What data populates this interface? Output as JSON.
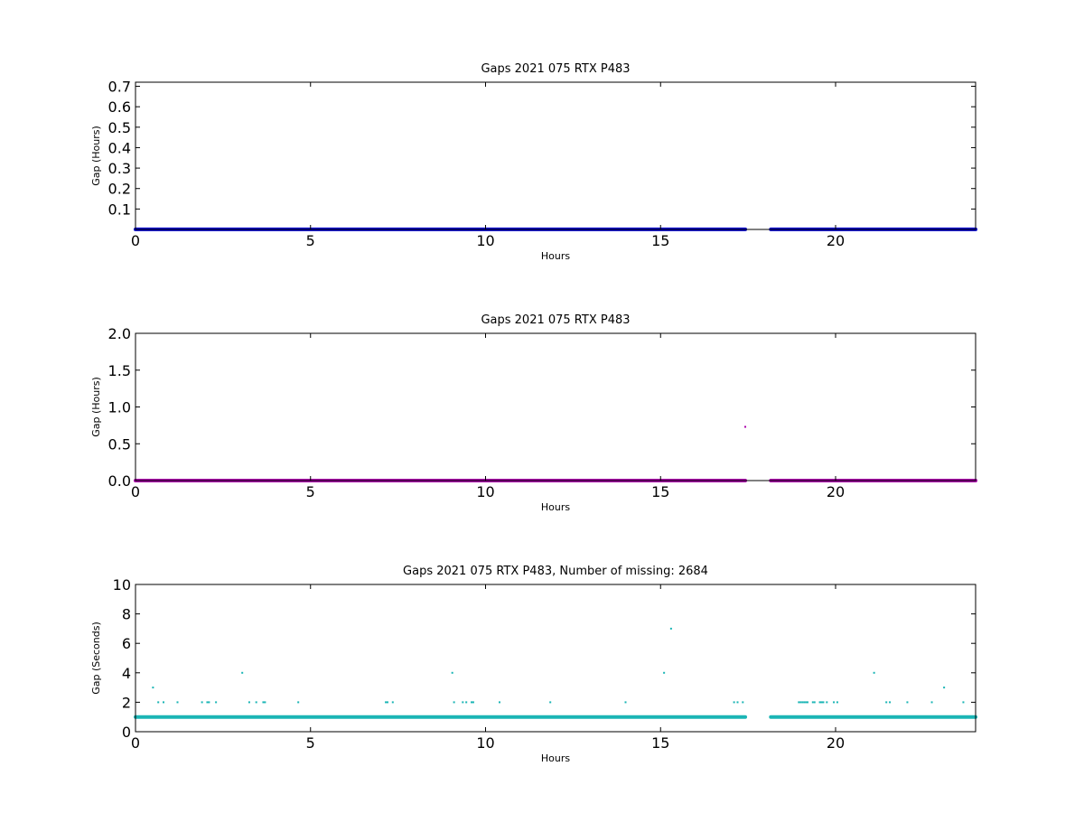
{
  "chart_data": [
    {
      "type": "scatter",
      "title": "Gaps 2021 075 RTX  P483",
      "xlabel": "Hours",
      "ylabel": "Gap (Hours)",
      "xlim": [
        0,
        24
      ],
      "ylim": [
        0,
        0.72
      ],
      "xticks": [
        "0",
        "5",
        "10",
        "15",
        "20"
      ],
      "yticks": [
        "0.1",
        "0.2",
        "0.3",
        "0.4",
        "0.5",
        "0.6",
        "0.7"
      ],
      "color": "#0000cc",
      "grid": false,
      "series": [
        {
          "segments": [
            [
              0,
              17.42
            ],
            [
              18.15,
              24
            ]
          ],
          "value": 0.0003,
          "outliers": []
        }
      ]
    },
    {
      "type": "scatter",
      "title": "Gaps 2021 075 RTX  P483",
      "xlabel": "Hours",
      "ylabel": "Gap (Hours)",
      "xlim": [
        0,
        24
      ],
      "ylim": [
        0,
        2.0
      ],
      "xticks": [
        "0",
        "5",
        "10",
        "15",
        "20"
      ],
      "yticks": [
        "0.0",
        "0.5",
        "1.0",
        "1.5",
        "2.0"
      ],
      "color": "#aa00aa",
      "grid": false,
      "series": [
        {
          "segments": [
            [
              0,
              17.42
            ],
            [
              18.15,
              24
            ]
          ],
          "value": 0.0003,
          "outliers": [
            {
              "x": 17.42,
              "y": 0.73
            }
          ]
        }
      ]
    },
    {
      "type": "scatter",
      "title": "Gaps 2021 075 RTX  P483, Number of missing: 2684",
      "xlabel": "Hours",
      "ylabel": "Gap (Seconds)",
      "xlim": [
        0,
        24
      ],
      "ylim": [
        0,
        10
      ],
      "xticks": [
        "0",
        "5",
        "10",
        "15",
        "20"
      ],
      "yticks": [
        "0",
        "2",
        "4",
        "6",
        "8",
        "10"
      ],
      "color": "#1ab5b5",
      "grid": false,
      "series": [
        {
          "segments": [
            [
              0,
              17.42
            ],
            [
              18.15,
              24
            ]
          ],
          "value": 1,
          "outliers": [
            {
              "x": 0.5,
              "y": 3
            },
            {
              "x": 0.65,
              "y": 2
            },
            {
              "x": 0.8,
              "y": 2
            },
            {
              "x": 1.2,
              "y": 2
            },
            {
              "x": 1.9,
              "y": 2
            },
            {
              "x": 2.05,
              "y": 2
            },
            {
              "x": 2.1,
              "y": 2
            },
            {
              "x": 2.3,
              "y": 2
            },
            {
              "x": 3.05,
              "y": 4
            },
            {
              "x": 3.25,
              "y": 2
            },
            {
              "x": 3.45,
              "y": 2
            },
            {
              "x": 3.65,
              "y": 2
            },
            {
              "x": 3.7,
              "y": 2
            },
            {
              "x": 4.65,
              "y": 2
            },
            {
              "x": 7.15,
              "y": 2
            },
            {
              "x": 7.2,
              "y": 2
            },
            {
              "x": 7.35,
              "y": 2
            },
            {
              "x": 9.05,
              "y": 4
            },
            {
              "x": 9.1,
              "y": 2
            },
            {
              "x": 9.35,
              "y": 2
            },
            {
              "x": 9.45,
              "y": 2
            },
            {
              "x": 9.6,
              "y": 2
            },
            {
              "x": 9.65,
              "y": 2
            },
            {
              "x": 10.4,
              "y": 2
            },
            {
              "x": 11.85,
              "y": 2
            },
            {
              "x": 14.0,
              "y": 2
            },
            {
              "x": 15.1,
              "y": 4
            },
            {
              "x": 15.3,
              "y": 7
            },
            {
              "x": 17.1,
              "y": 2
            },
            {
              "x": 17.2,
              "y": 2
            },
            {
              "x": 17.35,
              "y": 2
            },
            {
              "x": 18.95,
              "y": 2
            },
            {
              "x": 19.0,
              "y": 2
            },
            {
              "x": 19.05,
              "y": 2
            },
            {
              "x": 19.1,
              "y": 2
            },
            {
              "x": 19.15,
              "y": 2
            },
            {
              "x": 19.2,
              "y": 2
            },
            {
              "x": 19.35,
              "y": 2
            },
            {
              "x": 19.4,
              "y": 2
            },
            {
              "x": 19.55,
              "y": 2
            },
            {
              "x": 19.6,
              "y": 2
            },
            {
              "x": 19.65,
              "y": 2
            },
            {
              "x": 19.75,
              "y": 2
            },
            {
              "x": 19.95,
              "y": 2
            },
            {
              "x": 20.05,
              "y": 2
            },
            {
              "x": 21.1,
              "y": 4
            },
            {
              "x": 21.45,
              "y": 2
            },
            {
              "x": 21.55,
              "y": 2
            },
            {
              "x": 22.05,
              "y": 2
            },
            {
              "x": 22.75,
              "y": 2
            },
            {
              "x": 23.1,
              "y": 3
            },
            {
              "x": 23.65,
              "y": 2
            }
          ]
        }
      ]
    }
  ]
}
